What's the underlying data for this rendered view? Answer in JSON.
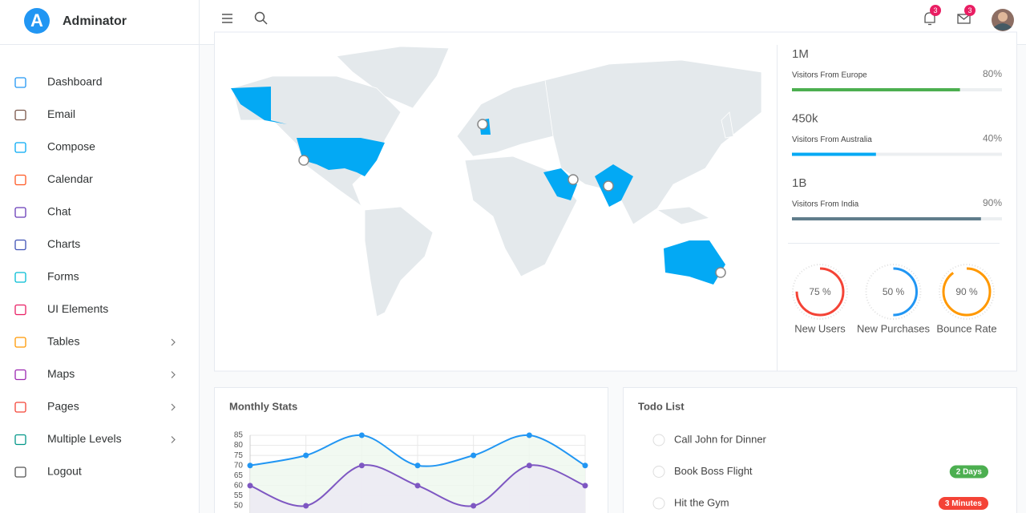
{
  "brand": {
    "logo_letter": "A",
    "name": "Adminator"
  },
  "header": {
    "notifications": 3,
    "messages": 3
  },
  "sidebar": {
    "items": [
      {
        "label": "Dashboard",
        "color": "#2196f3"
      },
      {
        "label": "Email",
        "color": "#795548"
      },
      {
        "label": "Compose",
        "color": "#03a9f4"
      },
      {
        "label": "Calendar",
        "color": "#ff5722"
      },
      {
        "label": "Chat",
        "color": "#673ab7"
      },
      {
        "label": "Charts",
        "color": "#3f51b5"
      },
      {
        "label": "Forms",
        "color": "#00bcd4"
      },
      {
        "label": "UI Elements",
        "color": "#e91e63"
      },
      {
        "label": "Tables",
        "color": "#ff9800",
        "submenu": true
      },
      {
        "label": "Maps",
        "color": "#9c27b0",
        "submenu": true
      },
      {
        "label": "Pages",
        "color": "#f44336",
        "submenu": true
      },
      {
        "label": "Multiple Levels",
        "color": "#009688",
        "submenu": true
      },
      {
        "label": "Logout",
        "color": "#555555"
      }
    ]
  },
  "visitors": [
    {
      "total": "1M",
      "label": "Visitors From Europe",
      "percent": 80,
      "percent_label": "80%",
      "color": "#4caf50"
    },
    {
      "total": "450k",
      "label": "Visitors From Australia",
      "percent": 40,
      "percent_label": "40%",
      "color": "#03a9f4"
    },
    {
      "total": "1B",
      "label": "Visitors From India",
      "percent": 90,
      "percent_label": "90%",
      "color": "#607d8b"
    }
  ],
  "gauges": [
    {
      "value": 75,
      "value_label": "75 %",
      "name": "New Users",
      "color": "#f44336"
    },
    {
      "value": 50,
      "value_label": "50 %",
      "name": "New Purchases",
      "color": "#2196f3"
    },
    {
      "value": 90,
      "value_label": "90 %",
      "name": "Bounce Rate",
      "color": "#ff9800"
    }
  ],
  "chart_data": {
    "type": "line",
    "title": "Monthly Stats",
    "categories": [
      null,
      null,
      null,
      null,
      null,
      null,
      null
    ],
    "series": [
      {
        "color": "#2196f3",
        "fill": "#eef7ee",
        "values": [
          70,
          75,
          85,
          70,
          75,
          85,
          70
        ]
      },
      {
        "color": "#7e57c2",
        "fill": "#ece8f4",
        "values": [
          60,
          50,
          70,
          60,
          50,
          70,
          60
        ]
      }
    ],
    "ylim": [
      40,
      85
    ],
    "yticks": [
      50,
      55,
      60,
      65,
      70,
      75,
      80,
      85
    ],
    "grid": true
  },
  "todo": {
    "title": "Todo List",
    "items": [
      {
        "text": "Call John for Dinner"
      },
      {
        "text": "Book Boss Flight",
        "badge": "2 Days",
        "badge_color": "#4caf50"
      },
      {
        "text": "Hit the Gym",
        "badge": "3 Minutes",
        "badge_color": "#f44336"
      }
    ]
  }
}
